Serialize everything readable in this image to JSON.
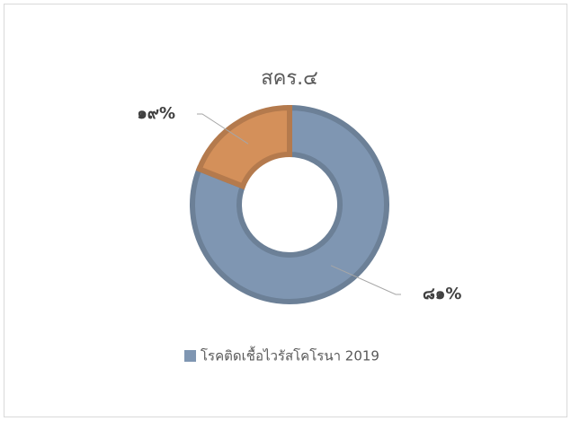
{
  "chart_data": {
    "type": "pie",
    "title": "สคร.๔",
    "categories": [
      "โรคติดเชื้อไวรัสโคโรนา 2019",
      null
    ],
    "values": [
      81,
      19
    ],
    "value_labels": [
      "๘๑%",
      "๑๙%"
    ],
    "colors": [
      "#7f96b2",
      "#d4905a"
    ],
    "legend": "bottom"
  }
}
